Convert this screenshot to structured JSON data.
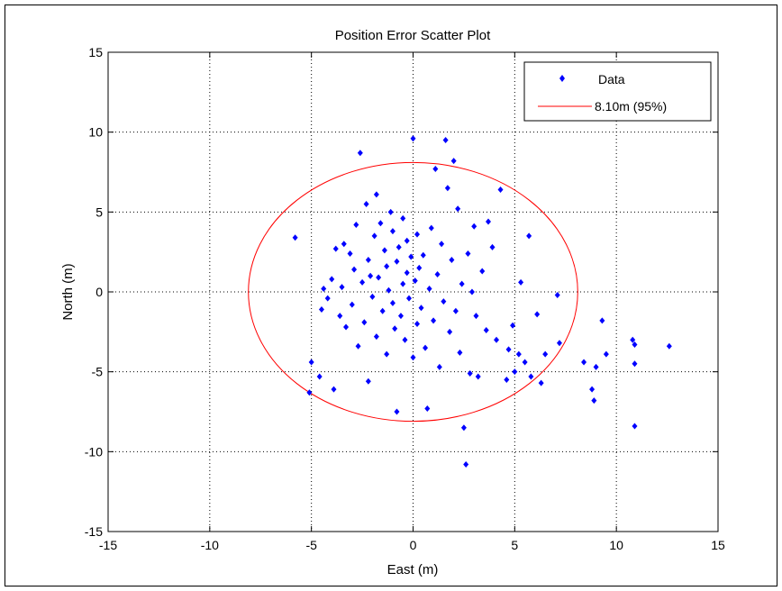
{
  "chart_data": {
    "type": "scatter",
    "title": "Position Error Scatter Plot",
    "xlabel": "East (m)",
    "ylabel": "North (m)",
    "xlim": [
      -15,
      15
    ],
    "ylim": [
      -15,
      15
    ],
    "xticks": [
      -15,
      -10,
      -5,
      0,
      5,
      10,
      15
    ],
    "yticks": [
      -15,
      -10,
      -5,
      0,
      5,
      10,
      15
    ],
    "xtick_labels": [
      "-15",
      "-10",
      "-5",
      "0",
      "5",
      "10",
      "15"
    ],
    "ytick_labels": [
      "-15",
      "-10",
      "-5",
      "0",
      "5",
      "10",
      "15"
    ],
    "grid": true,
    "legend_position": "top-right",
    "colors": {
      "data": "#0000ff",
      "circle": "#ff0000"
    },
    "series": [
      {
        "name": "Data",
        "marker": "diamond",
        "points": [
          [
            -5.8,
            3.4
          ],
          [
            -5.1,
            -6.3
          ],
          [
            -5.0,
            -4.4
          ],
          [
            -4.6,
            -5.3
          ],
          [
            -4.4,
            0.2
          ],
          [
            -4.5,
            -1.1
          ],
          [
            -4.2,
            -0.4
          ],
          [
            -4.0,
            0.8
          ],
          [
            -3.9,
            -6.1
          ],
          [
            -3.8,
            2.7
          ],
          [
            -3.6,
            -1.5
          ],
          [
            -3.5,
            0.3
          ],
          [
            -3.4,
            3.0
          ],
          [
            -3.3,
            -2.2
          ],
          [
            -3.1,
            2.4
          ],
          [
            -3.0,
            -0.8
          ],
          [
            -2.9,
            1.4
          ],
          [
            -2.8,
            4.2
          ],
          [
            -2.7,
            -3.4
          ],
          [
            -2.6,
            8.7
          ],
          [
            -2.5,
            0.6
          ],
          [
            -2.4,
            -1.9
          ],
          [
            -2.3,
            5.5
          ],
          [
            -2.2,
            2.0
          ],
          [
            -2.2,
            -5.6
          ],
          [
            -2.1,
            1.0
          ],
          [
            -2.0,
            -0.3
          ],
          [
            -1.9,
            3.5
          ],
          [
            -1.8,
            6.1
          ],
          [
            -1.8,
            -2.8
          ],
          [
            -1.7,
            0.9
          ],
          [
            -1.6,
            4.3
          ],
          [
            -1.5,
            -1.2
          ],
          [
            -1.4,
            2.6
          ],
          [
            -1.3,
            -3.9
          ],
          [
            -1.3,
            1.6
          ],
          [
            -1.2,
            0.1
          ],
          [
            -1.1,
            5.0
          ],
          [
            -1.0,
            -0.7
          ],
          [
            -1.0,
            3.8
          ],
          [
            -0.9,
            -2.3
          ],
          [
            -0.8,
            1.9
          ],
          [
            -0.8,
            -7.5
          ],
          [
            -0.7,
            2.8
          ],
          [
            -0.6,
            -1.5
          ],
          [
            -0.5,
            0.5
          ],
          [
            -0.5,
            4.6
          ],
          [
            -0.4,
            -3.0
          ],
          [
            -0.3,
            1.2
          ],
          [
            -0.3,
            3.2
          ],
          [
            -0.2,
            -0.4
          ],
          [
            -0.1,
            2.2
          ],
          [
            0.0,
            9.6
          ],
          [
            0.0,
            -4.1
          ],
          [
            0.1,
            0.7
          ],
          [
            0.2,
            3.6
          ],
          [
            0.2,
            -2.0
          ],
          [
            0.3,
            1.5
          ],
          [
            0.4,
            -1.0
          ],
          [
            0.5,
            2.3
          ],
          [
            0.6,
            -3.5
          ],
          [
            0.7,
            -7.3
          ],
          [
            0.8,
            0.2
          ],
          [
            0.9,
            4.0
          ],
          [
            1.0,
            -1.8
          ],
          [
            1.1,
            7.7
          ],
          [
            1.2,
            1.1
          ],
          [
            1.3,
            -4.7
          ],
          [
            1.4,
            3.0
          ],
          [
            1.5,
            -0.6
          ],
          [
            1.6,
            9.5
          ],
          [
            1.7,
            6.5
          ],
          [
            1.8,
            -2.5
          ],
          [
            1.9,
            2.0
          ],
          [
            2.0,
            8.2
          ],
          [
            2.1,
            -1.2
          ],
          [
            2.2,
            5.2
          ],
          [
            2.3,
            -3.8
          ],
          [
            2.4,
            0.5
          ],
          [
            2.5,
            -8.5
          ],
          [
            2.6,
            -10.8
          ],
          [
            2.7,
            2.4
          ],
          [
            2.8,
            -5.1
          ],
          [
            2.9,
            0.0
          ],
          [
            3.0,
            4.1
          ],
          [
            3.1,
            -1.5
          ],
          [
            3.2,
            -5.3
          ],
          [
            3.4,
            1.3
          ],
          [
            3.6,
            -2.4
          ],
          [
            3.7,
            4.4
          ],
          [
            3.9,
            2.8
          ],
          [
            4.1,
            -3.0
          ],
          [
            4.3,
            6.4
          ],
          [
            4.6,
            -5.5
          ],
          [
            4.7,
            -3.6
          ],
          [
            4.9,
            -2.1
          ],
          [
            5.0,
            -5.0
          ],
          [
            5.2,
            -3.9
          ],
          [
            5.3,
            0.6
          ],
          [
            5.5,
            -4.4
          ],
          [
            5.7,
            3.5
          ],
          [
            5.8,
            -5.3
          ],
          [
            6.1,
            -1.4
          ],
          [
            6.3,
            -5.7
          ],
          [
            6.5,
            -3.9
          ],
          [
            7.1,
            -0.2
          ],
          [
            7.2,
            -3.2
          ],
          [
            8.4,
            -4.4
          ],
          [
            8.8,
            -6.1
          ],
          [
            8.9,
            -6.8
          ],
          [
            9.0,
            -4.7
          ],
          [
            9.3,
            -1.8
          ],
          [
            9.5,
            -3.9
          ],
          [
            10.8,
            -3.0
          ],
          [
            10.9,
            -3.3
          ],
          [
            10.9,
            -4.5
          ],
          [
            10.9,
            -8.4
          ],
          [
            12.6,
            -3.4
          ]
        ]
      },
      {
        "name": "8.10m (95%)",
        "type": "circle",
        "radius": 8.1
      }
    ]
  }
}
